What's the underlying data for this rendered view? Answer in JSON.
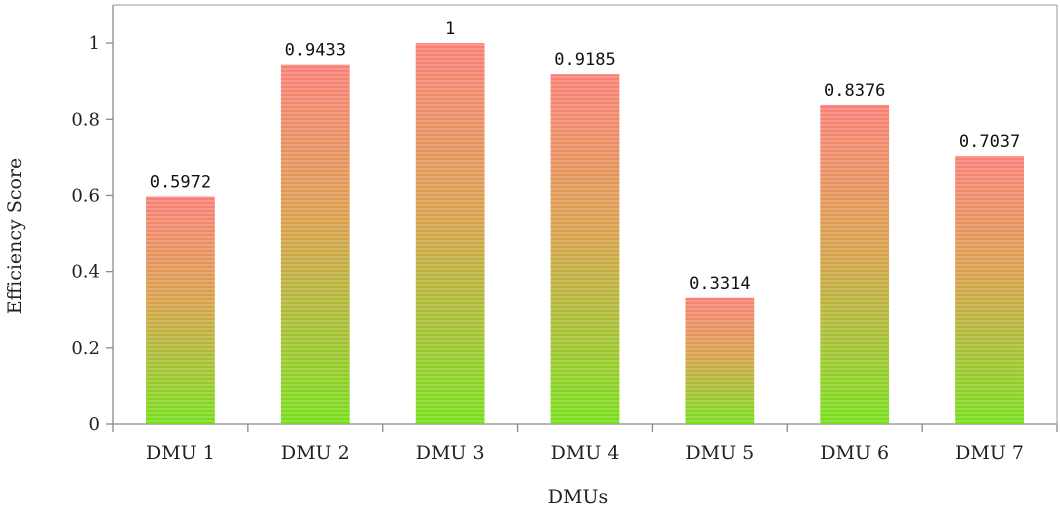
{
  "chart_data": {
    "type": "bar",
    "title": "",
    "xlabel": "DMUs",
    "ylabel": "Efficiency Score",
    "categories": [
      "DMU 1",
      "DMU 2",
      "DMU 3",
      "DMU 4",
      "DMU 5",
      "DMU 6",
      "DMU 7"
    ],
    "values": [
      0.5972,
      0.9433,
      1,
      0.9185,
      0.3314,
      0.8376,
      0.7037
    ],
    "data_labels": [
      "0.5972",
      "0.9433",
      "1",
      "0.9185",
      "0.3314",
      "0.8376",
      "0.7037"
    ],
    "ylim": [
      0,
      1.1
    ],
    "yticks": [
      0,
      0.2,
      0.4,
      0.6,
      0.8,
      1
    ],
    "ytick_labels": [
      "0",
      "0.2",
      "0.4",
      "0.6",
      "0.8",
      "1"
    ],
    "grid": false,
    "legend": "none",
    "colors": {
      "bar_top": "#f97f76",
      "bar_bottom": "#77dd1a",
      "axis": "#8a8a8a",
      "frame": "#9a9a9a",
      "text": "#222222"
    }
  }
}
